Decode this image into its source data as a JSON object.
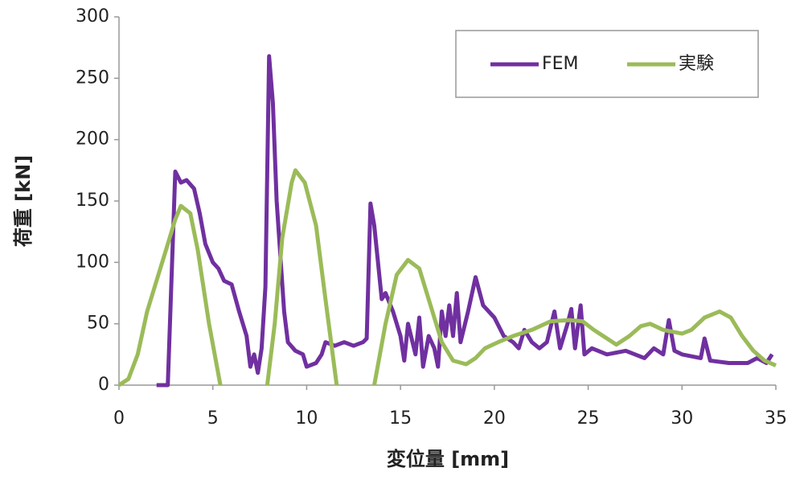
{
  "chart_data": {
    "type": "line",
    "xlabel": "変位量 [mm]",
    "ylabel": "荷重 [kN]",
    "xlim": [
      0,
      35
    ],
    "xticks": [
      0,
      5,
      10,
      15,
      20,
      25,
      30,
      35
    ],
    "ylim": [
      0,
      300
    ],
    "yticks": [
      0,
      50,
      100,
      150,
      200,
      250,
      300
    ],
    "grid": false,
    "legend": "upper right",
    "series": [
      {
        "name": "FEM",
        "color": "#7030a0",
        "x": [
          2,
          2.6,
          3.0,
          3.3,
          3.6,
          4.0,
          4.3,
          4.6,
          5.0,
          5.3,
          5.6,
          6.0,
          6.4,
          6.8,
          7.0,
          7.2,
          7.4,
          7.6,
          7.8,
          8.0,
          8.2,
          8.4,
          8.8,
          9.0,
          9.4,
          9.8,
          10.0,
          10.5,
          10.8,
          11.0,
          11.5,
          12.0,
          12.5,
          13.0,
          13.2,
          13.4,
          13.6,
          14.0,
          14.2,
          14.6,
          15.0,
          15.2,
          15.4,
          15.8,
          16.0,
          16.2,
          16.5,
          16.8,
          17.0,
          17.2,
          17.4,
          17.6,
          17.8,
          18.0,
          18.2,
          18.6,
          19.0,
          19.4,
          20.0,
          20.5,
          21.0,
          21.3,
          21.6,
          22.0,
          22.4,
          22.8,
          23.2,
          23.5,
          23.9,
          24.1,
          24.3,
          24.6,
          24.8,
          25.2,
          26,
          27,
          28,
          28.5,
          29,
          29.3,
          29.6,
          30,
          31,
          31.2,
          31.5,
          32.5,
          33.5,
          34,
          34.5,
          34.8
        ],
        "values": [
          0,
          0,
          174,
          165,
          167,
          160,
          140,
          115,
          100,
          95,
          85,
          82,
          60,
          40,
          15,
          25,
          10,
          30,
          80,
          268,
          230,
          150,
          60,
          35,
          28,
          25,
          15,
          18,
          25,
          35,
          32,
          35,
          32,
          35,
          38,
          148,
          130,
          70,
          75,
          60,
          40,
          20,
          50,
          25,
          55,
          15,
          40,
          30,
          15,
          60,
          40,
          65,
          40,
          75,
          35,
          60,
          88,
          65,
          55,
          40,
          35,
          30,
          45,
          35,
          30,
          35,
          60,
          30,
          50,
          62,
          30,
          65,
          25,
          30,
          25,
          28,
          22,
          30,
          25,
          53,
          28,
          25,
          22,
          38,
          20,
          18,
          18,
          22,
          18,
          25
        ]
      },
      {
        "name": "実験",
        "color": "#9bbb59",
        "x": [
          0,
          0.5,
          1,
          1.5,
          2,
          2.5,
          3,
          3.3,
          3.8,
          4.2,
          4.8,
          5.4,
          null,
          7.9,
          8.3,
          8.7,
          9.2,
          9.4,
          9.9,
          10.5,
          11.0,
          11.6,
          null,
          13.6,
          14.2,
          14.8,
          15.4,
          16,
          16.6,
          17.2,
          17.8,
          18.5,
          19,
          19.5,
          20.2,
          21,
          22,
          23,
          24,
          24.7,
          25.3,
          25.8,
          26.5,
          27.2,
          27.8,
          28.3,
          29,
          30,
          30.5,
          31.2,
          32,
          32.6,
          33.2,
          33.8,
          34.4,
          35
        ],
        "values": [
          0,
          5,
          25,
          60,
          85,
          110,
          135,
          146,
          140,
          110,
          50,
          0,
          null,
          0,
          50,
          120,
          165,
          175,
          165,
          130,
          70,
          0,
          null,
          0,
          50,
          90,
          102,
          95,
          65,
          35,
          20,
          17,
          22,
          30,
          35,
          40,
          45,
          52,
          53,
          52,
          45,
          40,
          33,
          40,
          48,
          50,
          45,
          42,
          45,
          55,
          60,
          55,
          40,
          28,
          20,
          16
        ]
      }
    ]
  }
}
